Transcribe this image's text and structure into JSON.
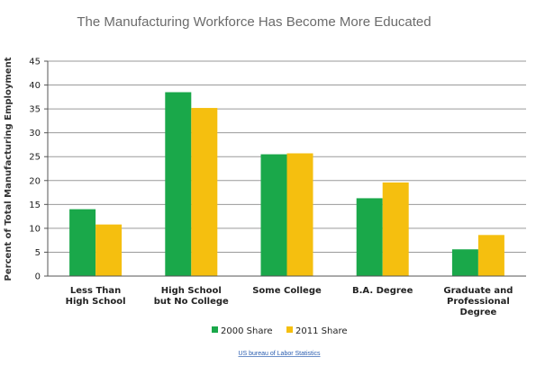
{
  "chart_data": {
    "type": "bar",
    "title": "The Manufacturing Workforce Has Become More Educated",
    "ylabel": "Percent of Total Manufacturing Employment",
    "xlabel": "",
    "ylim": [
      0,
      45
    ],
    "yticks": [
      0,
      5,
      10,
      15,
      20,
      25,
      30,
      35,
      40,
      45
    ],
    "grid": true,
    "categories": [
      [
        "Less Than",
        "High School"
      ],
      [
        "High School",
        "but No College"
      ],
      [
        "Some College"
      ],
      [
        "B.A. Degree"
      ],
      [
        "Graduate and",
        "Professional",
        "Degree"
      ]
    ],
    "series": [
      {
        "name": "2000 Share",
        "color": "#1aa84a",
        "values": [
          14,
          38.5,
          25.5,
          16.3,
          5.6
        ]
      },
      {
        "name": "2011 Share",
        "color": "#f5bf0f",
        "values": [
          10.8,
          35.2,
          25.7,
          19.6,
          8.6
        ]
      }
    ],
    "legend_position": "bottom-center",
    "source": "US bureau of Labor Statistics"
  }
}
